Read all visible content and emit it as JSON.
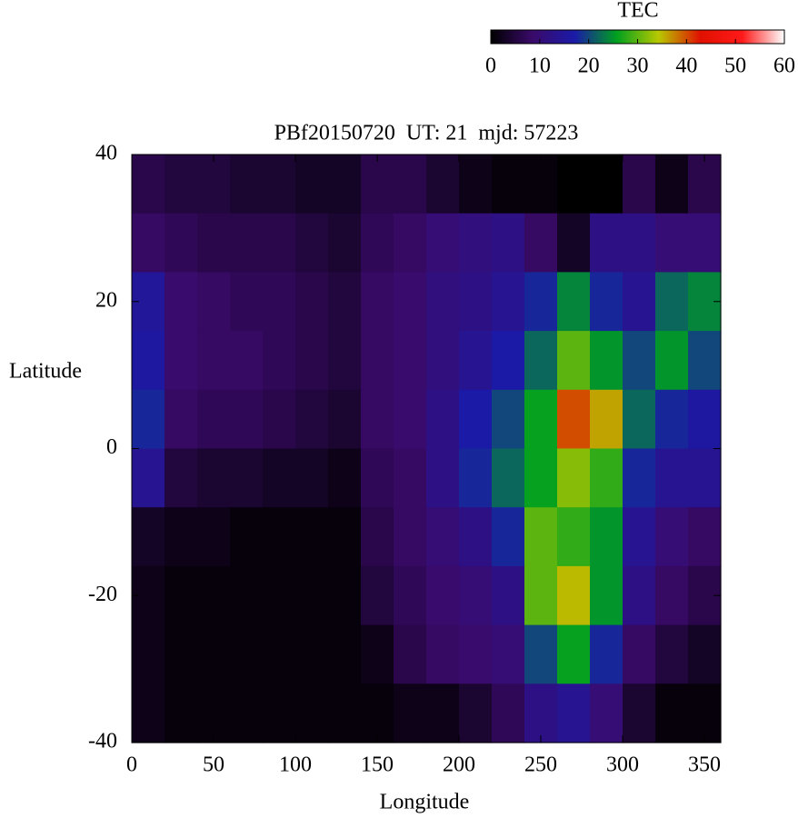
{
  "chart_data": {
    "type": "heatmap",
    "title": "PBf20150720  UT: 21  mjd: 57223",
    "x_label": "Longitude",
    "y_label": "Latitude",
    "colorbar_label": "TEC",
    "x": [
      10,
      30,
      50,
      70,
      90,
      110,
      130,
      150,
      170,
      190,
      210,
      230,
      250,
      270,
      290,
      310,
      330,
      350
    ],
    "y": [
      36,
      28,
      20,
      12,
      4,
      -4,
      -12,
      -20,
      -28,
      -36
    ],
    "values": [
      [
        6,
        5,
        5,
        4,
        4,
        3,
        3,
        6,
        6,
        4,
        2,
        1,
        1,
        0,
        0,
        6,
        2,
        6
      ],
      [
        8,
        7,
        6,
        6,
        6,
        5,
        4,
        7,
        8,
        10,
        11,
        12,
        8,
        3,
        12,
        12,
        10,
        10
      ],
      [
        15,
        9,
        8,
        7,
        7,
        6,
        5,
        8,
        9,
        11,
        12,
        14,
        18,
        24,
        18,
        14,
        22,
        24
      ],
      [
        16,
        9,
        8,
        8,
        7,
        6,
        5,
        8,
        9,
        11,
        14,
        17,
        22,
        30,
        25,
        20,
        25,
        20
      ],
      [
        18,
        8,
        7,
        7,
        6,
        5,
        4,
        8,
        9,
        12,
        17,
        20,
        26,
        40,
        36,
        22,
        18,
        16
      ],
      [
        14,
        5,
        4,
        4,
        3,
        3,
        2,
        7,
        8,
        12,
        18,
        22,
        26,
        32,
        28,
        18,
        14,
        14
      ],
      [
        3,
        2,
        2,
        1,
        1,
        1,
        1,
        6,
        8,
        10,
        12,
        18,
        30,
        28,
        25,
        14,
        10,
        8
      ],
      [
        2,
        1,
        1,
        1,
        1,
        1,
        1,
        5,
        7,
        9,
        10,
        12,
        30,
        35,
        25,
        12,
        8,
        6
      ],
      [
        2,
        1,
        1,
        1,
        1,
        1,
        1,
        2,
        6,
        8,
        9,
        10,
        20,
        26,
        18,
        8,
        5,
        3
      ],
      [
        2,
        1,
        1,
        1,
        1,
        1,
        1,
        1,
        2,
        2,
        4,
        7,
        12,
        14,
        10,
        4,
        1,
        1
      ]
    ],
    "xlim": [
      0,
      360
    ],
    "ylim": [
      -40,
      40
    ],
    "xticks": [
      0,
      50,
      100,
      150,
      200,
      250,
      300,
      350
    ],
    "yticks": [
      -40,
      -20,
      0,
      20,
      40
    ],
    "clim": [
      0,
      60
    ],
    "cticks": [
      0,
      10,
      20,
      30,
      40,
      50,
      60
    ],
    "colormap": [
      "#000000",
      "#3a0a6a",
      "#1a1aa8",
      "#00a020",
      "#b8c800",
      "#e01000",
      "#ff1a1a",
      "#ffffff"
    ]
  }
}
